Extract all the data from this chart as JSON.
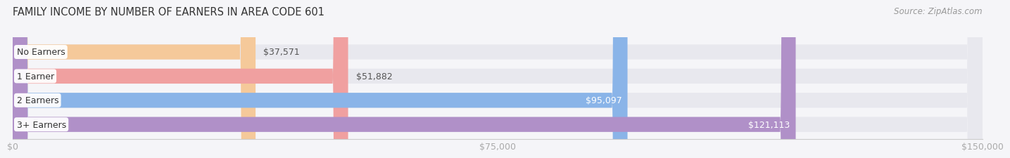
{
  "title": "FAMILY INCOME BY NUMBER OF EARNERS IN AREA CODE 601",
  "source": "Source: ZipAtlas.com",
  "categories": [
    "No Earners",
    "1 Earner",
    "2 Earners",
    "3+ Earners"
  ],
  "values": [
    37571,
    51882,
    95097,
    121113
  ],
  "labels": [
    "$37,571",
    "$51,882",
    "$95,097",
    "$121,113"
  ],
  "bar_colors": [
    "#f5c99a",
    "#f0a0a0",
    "#8ab4e8",
    "#b090c8"
  ],
  "bar_bg_color": "#e8e8ee",
  "label_colors_inside": [
    "#555555",
    "#555555",
    "#ffffff",
    "#ffffff"
  ],
  "xlim": [
    0,
    150000
  ],
  "xtick_values": [
    0,
    75000,
    150000
  ],
  "xtick_labels": [
    "$0",
    "$75,000",
    "$150,000"
  ],
  "title_fontsize": 10.5,
  "source_fontsize": 8.5,
  "bar_label_fontsize": 9,
  "category_fontsize": 9,
  "tick_fontsize": 9,
  "figure_bg": "#f5f5f8",
  "bar_height": 0.62,
  "inside_threshold": 0.45
}
